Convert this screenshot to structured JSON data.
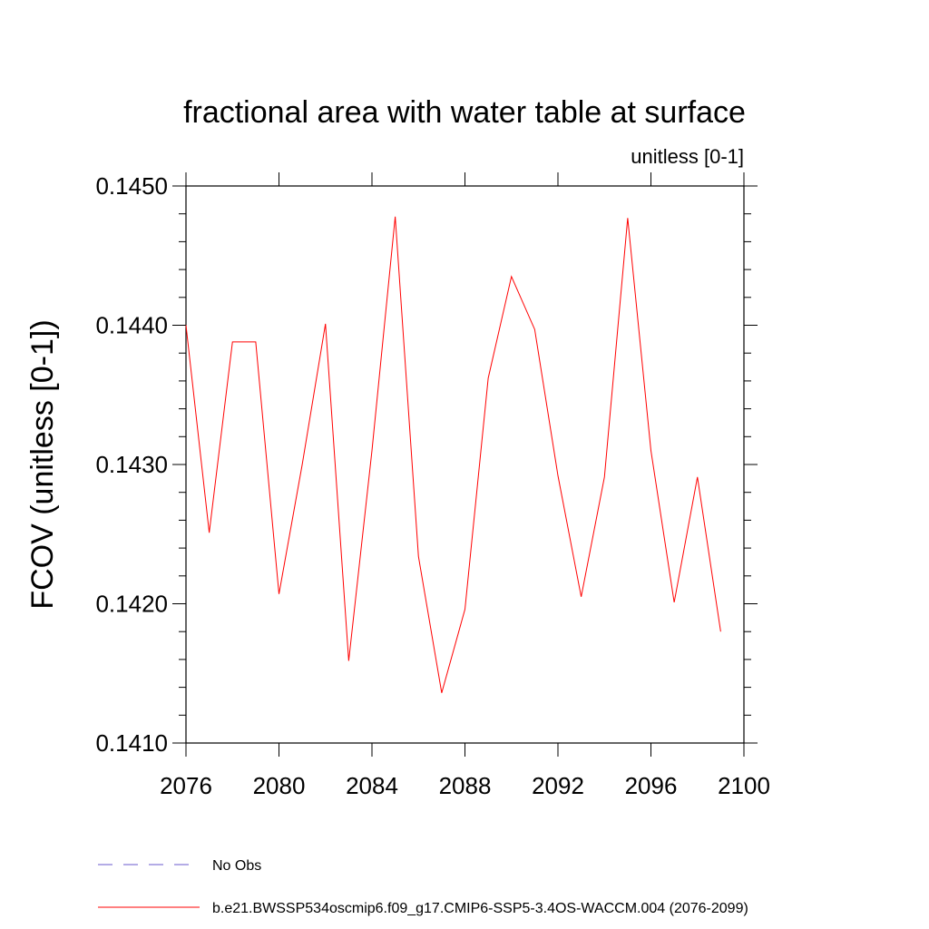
{
  "chart_data": {
    "type": "line",
    "title": "fractional area with water table at surface",
    "subtitle": "unitless [0-1]",
    "xlabel": "",
    "ylabel": "FCOV  (unitless [0-1])",
    "xlim": [
      2076,
      2100
    ],
    "ylim": [
      0.141,
      0.145
    ],
    "x_ticks": [
      2076,
      2080,
      2084,
      2088,
      2092,
      2096,
      2100
    ],
    "x_tick_labels": [
      "2076",
      "2080",
      "2084",
      "2088",
      "2092",
      "2096",
      "2100"
    ],
    "y_ticks": [
      0.141,
      0.142,
      0.143,
      0.144,
      0.145
    ],
    "y_tick_labels": [
      "0.1410",
      "0.1420",
      "0.1430",
      "0.1440",
      "0.1450"
    ],
    "grid": false,
    "legend_position": "bottom-left",
    "series": [
      {
        "name": "b.e21.BWSSP534oscmip6.f09_g17.CMIP6-SSP5-3.4OS-WACCM.004 (2076-2099)",
        "color": "#ff0000",
        "style": "solid",
        "x": [
          2076,
          2077,
          2078,
          2079,
          2080,
          2081,
          2082,
          2083,
          2084,
          2085,
          2086,
          2087,
          2088,
          2089,
          2090,
          2091,
          2092,
          2093,
          2094,
          2095,
          2096,
          2097,
          2098,
          2099
        ],
        "values": [
          0.144,
          0.14251,
          0.14388,
          0.14388,
          0.14207,
          0.143,
          0.14401,
          0.14159,
          0.1431,
          0.14478,
          0.14234,
          0.14136,
          0.14196,
          0.14362,
          0.14435,
          0.14397,
          0.14292,
          0.14205,
          0.14291,
          0.14477,
          0.1431,
          0.14201,
          0.14291,
          0.1418
        ]
      }
    ],
    "legend": [
      {
        "label": "No Obs",
        "color": "#6a5acd",
        "style": "dashed"
      },
      {
        "label": "b.e21.BWSSP534oscmip6.f09_g17.CMIP6-SSP5-3.4OS-WACCM.004 (2076-2099)",
        "color": "#ff0000",
        "style": "solid"
      }
    ]
  }
}
